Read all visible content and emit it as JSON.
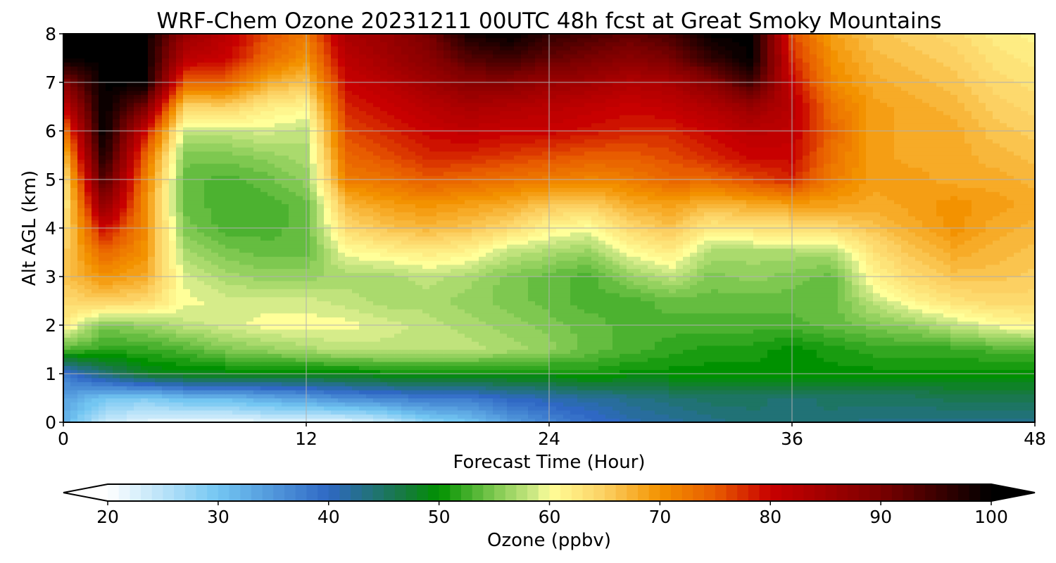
{
  "chart_data": {
    "type": "heatmap",
    "title": "WRF-Chem Ozone  20231211 00UTC 48h fcst at Great Smoky Mountains",
    "xlabel": "Forecast Time (Hour)",
    "ylabel": "Alt AGL (km)",
    "xlim": [
      0,
      48
    ],
    "ylim": [
      0,
      8
    ],
    "x_ticks": [
      0,
      12,
      24,
      36,
      48
    ],
    "y_ticks": [
      0,
      1,
      2,
      3,
      4,
      5,
      6,
      7,
      8
    ],
    "grid": true,
    "x": [
      0,
      2,
      4,
      6,
      8,
      10,
      12,
      14,
      16,
      18,
      20,
      22,
      24,
      26,
      28,
      30,
      32,
      34,
      36,
      38,
      40,
      42,
      44,
      46,
      48
    ],
    "y": [
      0,
      0.5,
      1,
      1.5,
      2,
      2.5,
      3,
      3.5,
      4,
      4.5,
      5,
      5.5,
      6,
      6.5,
      7,
      7.5,
      8
    ],
    "z_ppbv": [
      [
        32,
        24,
        22,
        21,
        21,
        22,
        22,
        22,
        24,
        28,
        30,
        34,
        37,
        39,
        41,
        42,
        43,
        44,
        44,
        44,
        43,
        43,
        43,
        43,
        43
      ],
      [
        34,
        30,
        29,
        31,
        31,
        33,
        34,
        36,
        37,
        38,
        38,
        40,
        41,
        42,
        43,
        44,
        45,
        45,
        44,
        45,
        45,
        45,
        46,
        46,
        46
      ],
      [
        38,
        44,
        48,
        49,
        49,
        49,
        49,
        49,
        50,
        50,
        50,
        50,
        50,
        51,
        50,
        50,
        50,
        50,
        50,
        50,
        50,
        50,
        50,
        50,
        50
      ],
      [
        53,
        52,
        52,
        53,
        55,
        56,
        57,
        58,
        58,
        58,
        58,
        57,
        56,
        54,
        53,
        52,
        51,
        51,
        50,
        51,
        52,
        52,
        52,
        53,
        53
      ],
      [
        62,
        55,
        56,
        58,
        59,
        60,
        60,
        60,
        59,
        58,
        57,
        56,
        55,
        54,
        53,
        53,
        53,
        53,
        53,
        54,
        55,
        56,
        58,
        60,
        61
      ],
      [
        64,
        65,
        64,
        60,
        59,
        59,
        59,
        58,
        57,
        57,
        56,
        55,
        54,
        53,
        53,
        54,
        54,
        54,
        54,
        54,
        58,
        61,
        63,
        64,
        64
      ],
      [
        66,
        70,
        68,
        59,
        57,
        56,
        56,
        57,
        57,
        58,
        57,
        55,
        54,
        53,
        56,
        58,
        55,
        56,
        55,
        54,
        61,
        64,
        66,
        66,
        65
      ],
      [
        65,
        74,
        70,
        57,
        55,
        54,
        54,
        60,
        61,
        62,
        61,
        58,
        57,
        56,
        60,
        62,
        57,
        57,
        57,
        57,
        63,
        66,
        68,
        67,
        66
      ],
      [
        63,
        80,
        71,
        55,
        53,
        53,
        54,
        64,
        66,
        67,
        66,
        64,
        61,
        60,
        64,
        66,
        62,
        63,
        63,
        64,
        66,
        68,
        70,
        68,
        67
      ],
      [
        61,
        88,
        71,
        54,
        53,
        53,
        54,
        67,
        69,
        70,
        69,
        68,
        66,
        65,
        68,
        69,
        67,
        68,
        69,
        69,
        68,
        69,
        70,
        69,
        68
      ],
      [
        62,
        94,
        72,
        54,
        53,
        54,
        56,
        72,
        73,
        75,
        74,
        73,
        72,
        71,
        72,
        74,
        74,
        76,
        78,
        72,
        69,
        69,
        68,
        68,
        67
      ],
      [
        66,
        98,
        75,
        55,
        55,
        56,
        57,
        74,
        76,
        78,
        78,
        77,
        76,
        75,
        75,
        76,
        78,
        80,
        80,
        73,
        69,
        68,
        68,
        67,
        66
      ],
      [
        72,
        100,
        80,
        58,
        58,
        59,
        58,
        76,
        78,
        80,
        81,
        80,
        80,
        79,
        78,
        78,
        80,
        82,
        81,
        74,
        69,
        68,
        68,
        66,
        65
      ],
      [
        80,
        100,
        90,
        64,
        65,
        62,
        61,
        78,
        80,
        82,
        84,
        83,
        82,
        81,
        80,
        81,
        83,
        86,
        82,
        73,
        69,
        68,
        67,
        65,
        64
      ],
      [
        88,
        100,
        100,
        74,
        74,
        68,
        66,
        80,
        82,
        85,
        88,
        88,
        86,
        85,
        83,
        84,
        88,
        95,
        80,
        71,
        68,
        67,
        66,
        64,
        63
      ],
      [
        100,
        100,
        100,
        82,
        80,
        74,
        70,
        82,
        85,
        88,
        93,
        95,
        92,
        90,
        88,
        90,
        96,
        100,
        78,
        70,
        67,
        66,
        65,
        63,
        62
      ],
      [
        100,
        100,
        100,
        86,
        82,
        76,
        72,
        84,
        86,
        90,
        98,
        100,
        96,
        94,
        92,
        94,
        100,
        100,
        76,
        69,
        66,
        65,
        64,
        62,
        61
      ]
    ],
    "colorbar": {
      "label": "Ozone  (ppbv)",
      "min": 20,
      "max": 100,
      "ticks": [
        20,
        30,
        40,
        50,
        60,
        70,
        80,
        90,
        100
      ],
      "extend": "both",
      "color_stops": [
        {
          "value": 20,
          "color": "#ffffff"
        },
        {
          "value": 30,
          "color": "#73c6f2"
        },
        {
          "value": 40,
          "color": "#2f68c4"
        },
        {
          "value": 47,
          "color": "#167a3c"
        },
        {
          "value": 50,
          "color": "#009100"
        },
        {
          "value": 55,
          "color": "#7ec850"
        },
        {
          "value": 59,
          "color": "#d6ec8a"
        },
        {
          "value": 60,
          "color": "#ffff99"
        },
        {
          "value": 65,
          "color": "#fcd062"
        },
        {
          "value": 70,
          "color": "#f39200"
        },
        {
          "value": 75,
          "color": "#e85c00"
        },
        {
          "value": 80,
          "color": "#c80000"
        },
        {
          "value": 90,
          "color": "#7a0000"
        },
        {
          "value": 100,
          "color": "#000000"
        }
      ]
    }
  }
}
